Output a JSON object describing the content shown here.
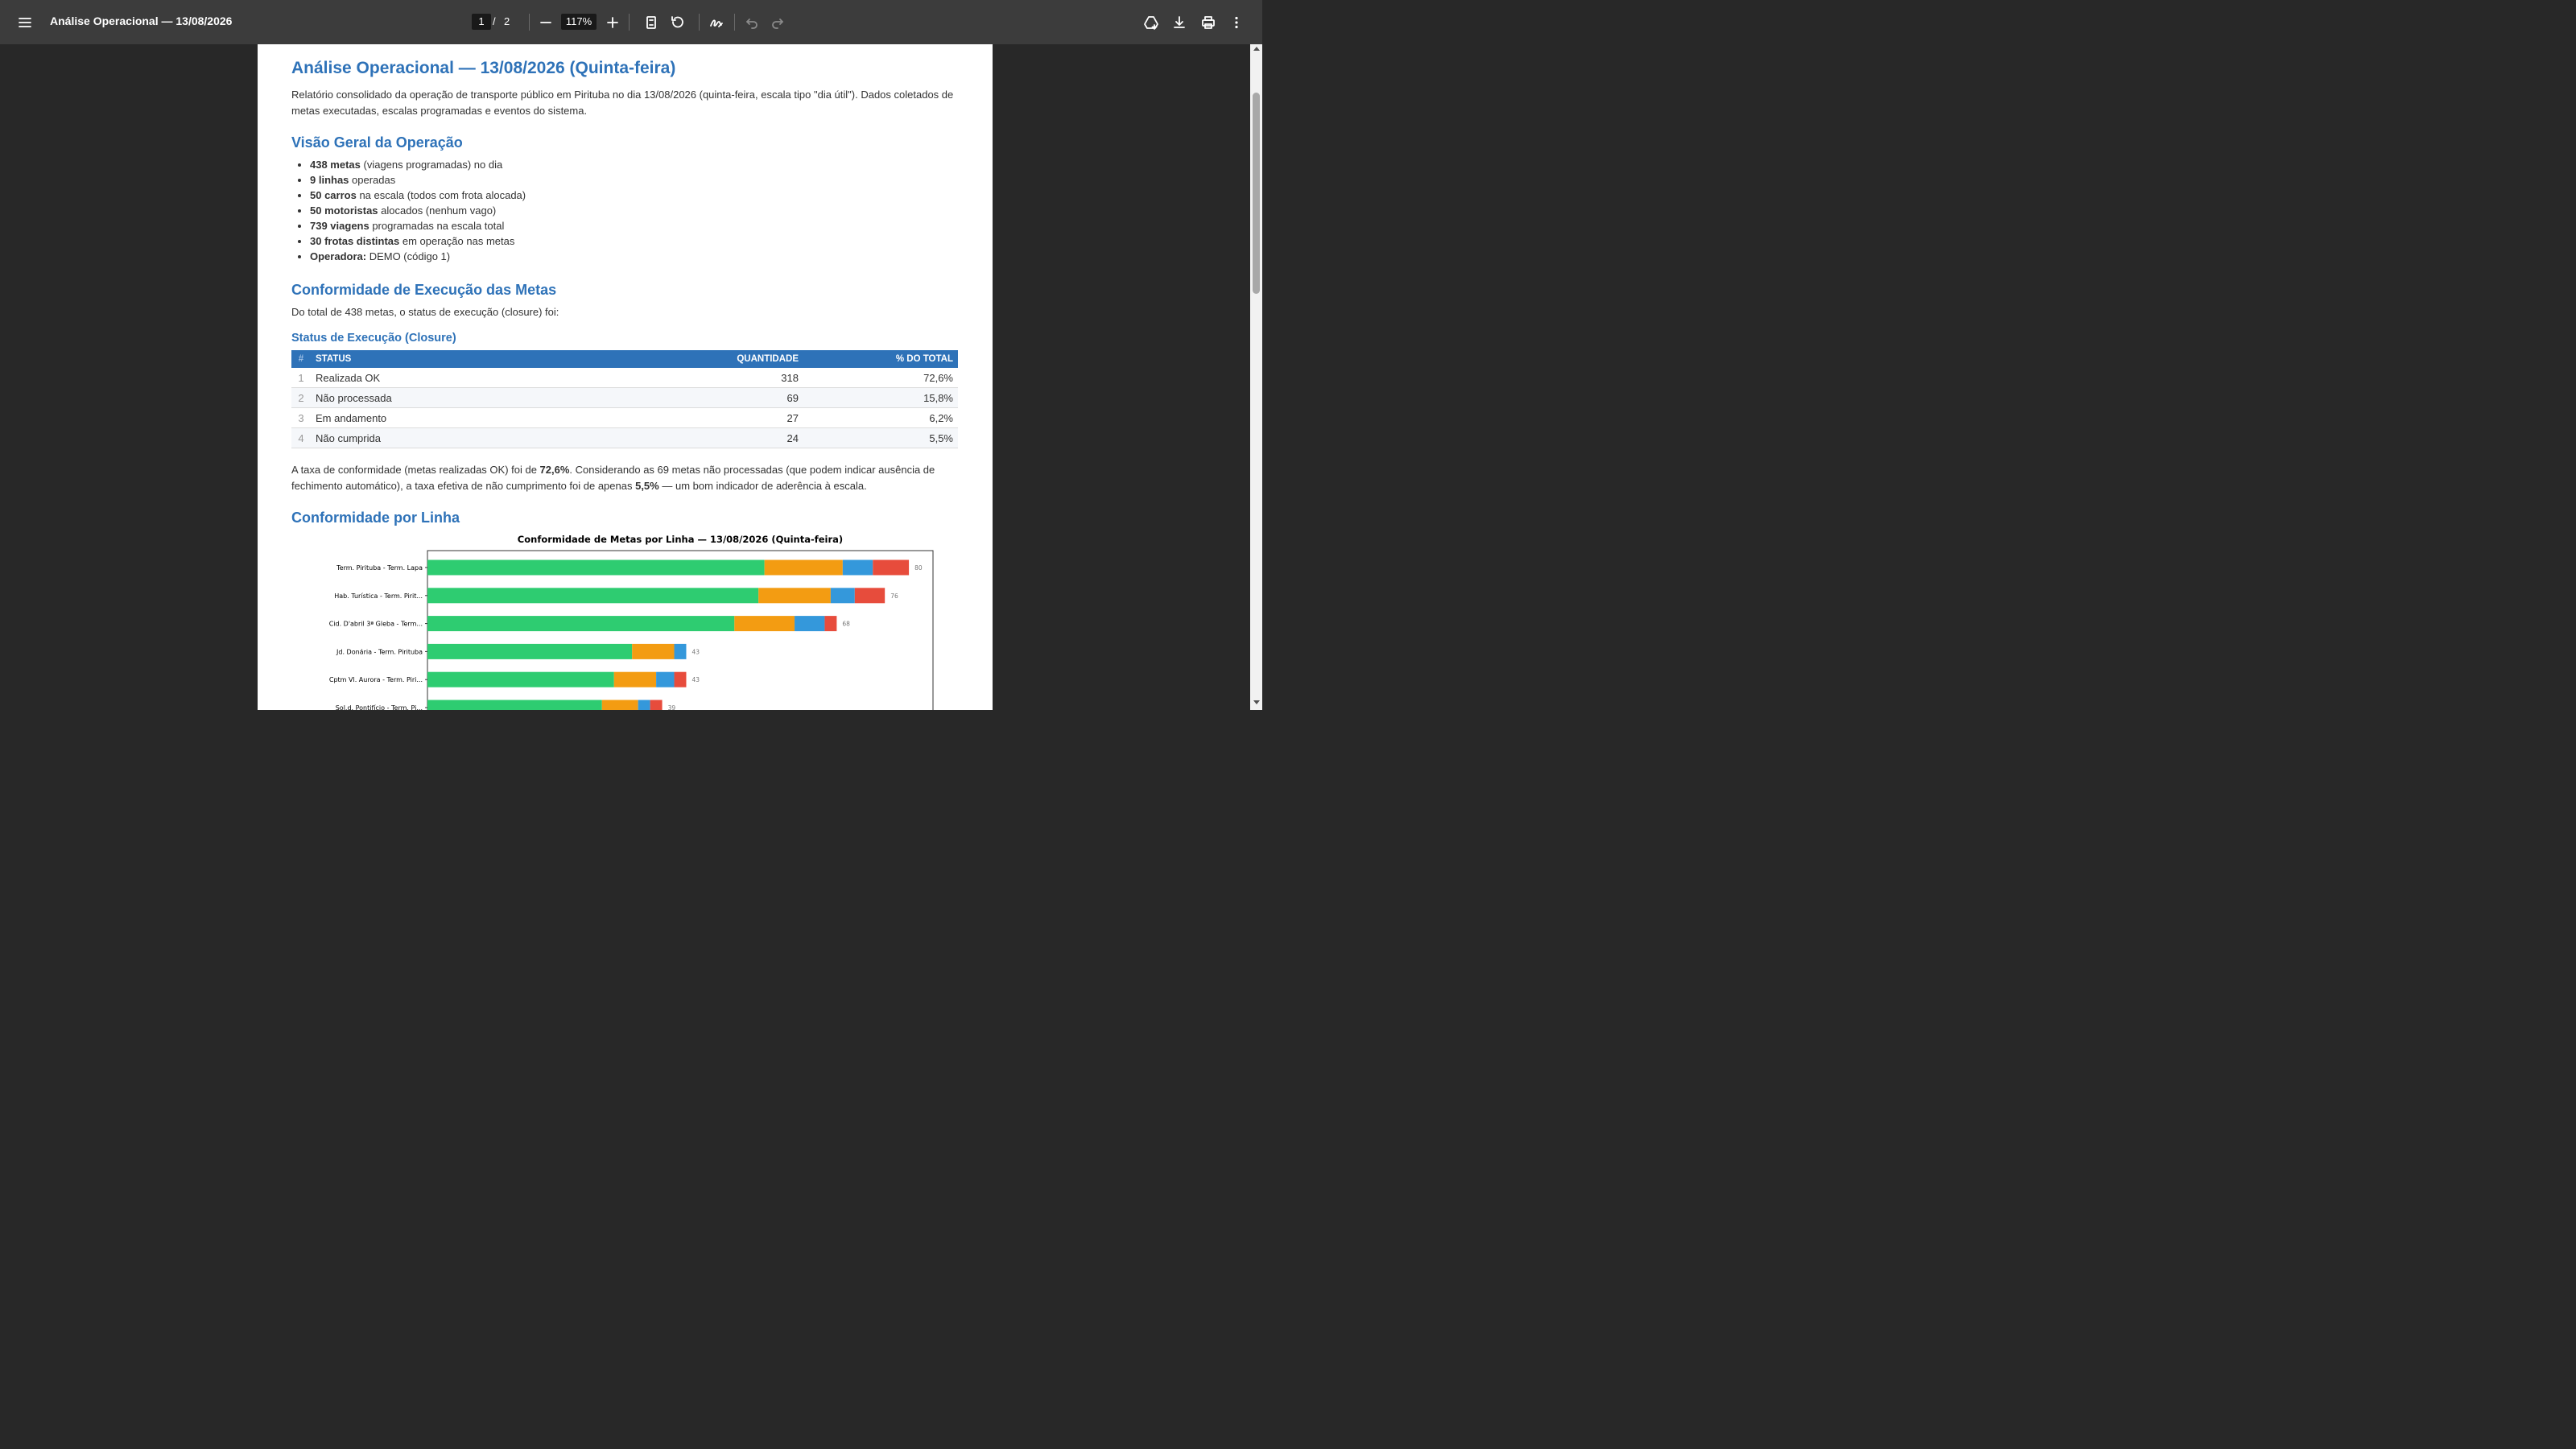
{
  "toolbar": {
    "title": "Análise Operacional — 13/08/2026",
    "current_page": "1",
    "page_separator": "/",
    "total_pages": "2",
    "zoom": "117%"
  },
  "document": {
    "title": "Análise Operacional — 13/08/2026 (Quinta-feira)",
    "intro": "Relatório consolidado da operação de transporte público em Pirituba no dia 13/08/2026 (quinta-feira, escala tipo \"dia útil\"). Dados coletados de metas executadas, escalas programadas e eventos do sistema.",
    "overview": {
      "heading": "Visão Geral da Operação",
      "items": [
        {
          "bold": "438 metas",
          "rest": " (viagens programadas) no dia"
        },
        {
          "bold": "9 linhas",
          "rest": " operadas"
        },
        {
          "bold": "50 carros",
          "rest": " na escala (todos com frota alocada)"
        },
        {
          "bold": "50 motoristas",
          "rest": " alocados (nenhum vago)"
        },
        {
          "bold": "739 viagens",
          "rest": " programadas na escala total"
        },
        {
          "bold": "30 frotas distintas",
          "rest": " em operação nas metas"
        },
        {
          "bold": "Operadora:",
          "rest": " DEMO (código 1)"
        }
      ]
    },
    "conformity": {
      "heading": "Conformidade de Execução das Metas",
      "lead": "Do total de 438 metas, o status de execução (closure) foi:",
      "table_title": "Status de Execução (Closure)",
      "columns": [
        "#",
        "STATUS",
        "QUANTIDADE",
        "% DO TOTAL"
      ],
      "rows": [
        {
          "n": "1",
          "status": "Realizada OK",
          "qty": "318",
          "pct": "72,6%"
        },
        {
          "n": "2",
          "status": "Não processada",
          "qty": "69",
          "pct": "15,8%"
        },
        {
          "n": "3",
          "status": "Em andamento",
          "qty": "27",
          "pct": "6,2%"
        },
        {
          "n": "4",
          "status": "Não cumprida",
          "qty": "24",
          "pct": "5,5%"
        }
      ],
      "summary_1": "A taxa de conformidade (metas realizadas OK) foi de ",
      "summary_b1": "72,6%",
      "summary_2": ". Considerando as 69 metas não processadas (que podem indicar ausência de fechimento automático), a taxa efetiva de não cumprimento foi de apenas ",
      "summary_b2": "5,5%",
      "summary_3": " — um bom indicador de aderência à escala."
    },
    "by_line_heading": "Conformidade por Linha"
  },
  "chart_data": {
    "type": "bar",
    "orientation": "horizontal",
    "stacked": true,
    "title": "Conformidade de Metas por Linha — 13/08/2026 (Quinta-feira)",
    "categories": [
      "Term. Pirituba - Term. Lapa",
      "Hab. Turística - Term. Pirit...",
      "Cid. D'abril 3ª Gleba - Term...",
      "Jd. Donária - Term. Pirituba",
      "Cptm Vl. Aurora - Term. Piri...",
      "Sol.d. Pontifício - Term. Pi..."
    ],
    "series": [
      {
        "values": [
          56,
          55,
          51,
          34,
          31,
          29
        ],
        "color": "#2ecc71"
      },
      {
        "values": [
          13,
          12,
          10,
          7,
          7,
          6
        ],
        "color": "#f39c12"
      },
      {
        "values": [
          5,
          4,
          5,
          2,
          3,
          2
        ],
        "color": "#3498db"
      },
      {
        "values": [
          6,
          5,
          2,
          0,
          2,
          2
        ],
        "color": "#e74c3c"
      }
    ],
    "totals": [
      "80",
      "76",
      "68",
      "43",
      "43",
      "39"
    ],
    "xlim": [
      0,
      84
    ]
  }
}
